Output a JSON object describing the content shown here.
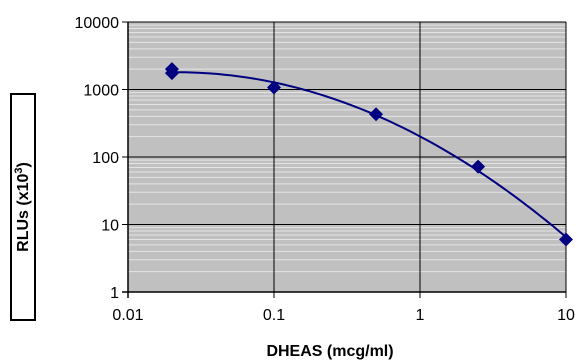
{
  "chart_data": {
    "type": "scatter",
    "title": "",
    "xlabel": "DHEAS (mcg/ml)",
    "ylabel": "RLUs (x10",
    "ylabel_sup": "3",
    "ylabel_close": ")",
    "xscale": "log",
    "yscale": "log",
    "xlim": [
      0.01,
      10
    ],
    "ylim": [
      1,
      10000
    ],
    "xticks": [
      0.01,
      0.1,
      1,
      10
    ],
    "xtick_labels": [
      "0.01",
      "0.1",
      "1",
      "10"
    ],
    "yticks": [
      1,
      10,
      100,
      1000,
      10000
    ],
    "ytick_labels": [
      "1",
      "10",
      "100",
      "1000",
      "10000"
    ],
    "grid": true,
    "legend": "none",
    "series": [
      {
        "x": [
          0.02,
          0.02,
          0.1,
          0.5,
          2.5,
          10
        ],
        "y": [
          2000,
          1750,
          1070,
          430,
          72,
          6
        ],
        "marker": "diamond",
        "trendline": true
      }
    ],
    "colors": {
      "plot_background": "#c0c0c0",
      "minor_grid": "#e4e4e4",
      "major_grid": "#000000",
      "series": "#000080"
    }
  }
}
